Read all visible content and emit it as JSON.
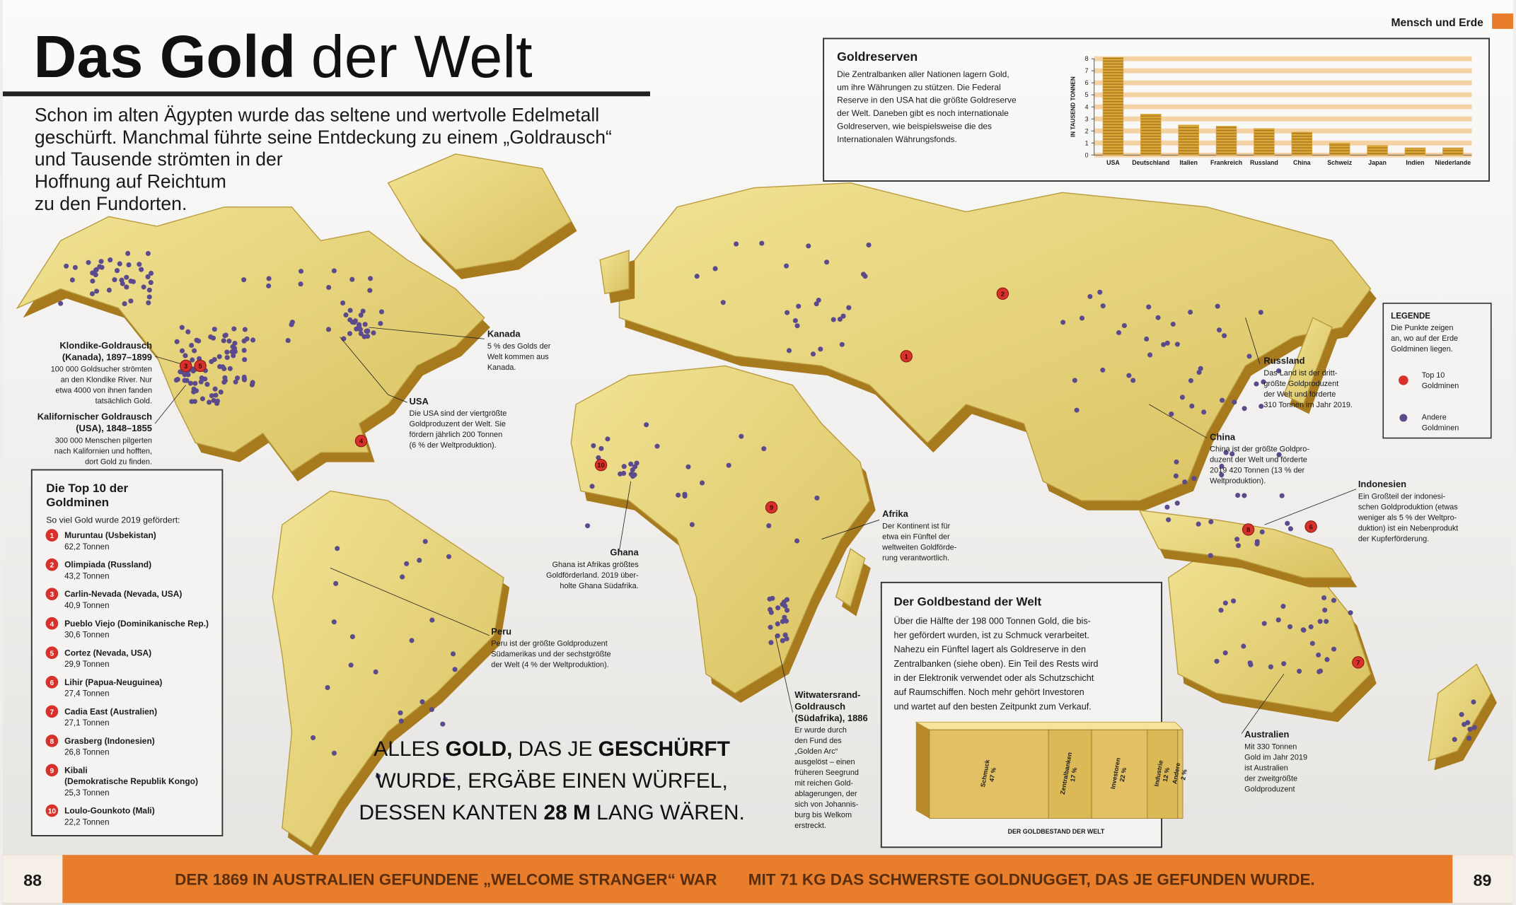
{
  "header": {
    "title_bold": "Das Gold",
    "title_regular": "der Welt",
    "section": "Mensch und Erde",
    "intro": [
      "Schon im alten Ägypten wurde das seltene und wertvolle Edelmetall",
      "geschürft. Manchmal führte seine Entdeckung zu einem „Goldrausch“",
      "und Tausende strömten in der",
      "Hoffnung auf Reichtum",
      "zu den Fundorten."
    ]
  },
  "reserves": {
    "text": [
      "Die Zentralbanken aller Nationen lagern Gold,",
      "um ihre Währungen zu stützen. Die Federal",
      "Reserve in den USA hat die größte Goldreserve",
      "der Welt. Daneben gibt es noch internationale",
      "Goldreserven, wie beispielsweise die des",
      "Internationalen Währungsfonds."
    ]
  },
  "chart_data": [
    {
      "type": "bar",
      "title": "Goldreserven",
      "y_label": "IN TAUSEND TONNEN",
      "categories": [
        "USA",
        "Deutschland",
        "Italien",
        "Frankreich",
        "Russland",
        "China",
        "Schweiz",
        "Japan",
        "Indien",
        "Niederlande"
      ],
      "values": [
        8.1,
        3.4,
        2.5,
        2.4,
        2.2,
        1.9,
        1.0,
        0.8,
        0.6,
        0.6
      ],
      "ylim": [
        0,
        8
      ],
      "yticks": [
        0,
        1,
        2,
        3,
        4,
        5,
        6,
        7,
        8
      ],
      "color": "#d9a63a",
      "grid": true
    },
    {
      "type": "stacked_bar",
      "title": "DER GOLDBESTAND DER WELT",
      "series": [
        {
          "name": "Schmuck",
          "values": [
            47
          ],
          "value_labels": [
            "47 %"
          ],
          "color": "#e2c063"
        },
        {
          "name": "Zentralbanken",
          "values": [
            17
          ],
          "value_labels": [
            "17 %"
          ],
          "color": "#dcb957"
        },
        {
          "name": "Investoren",
          "values": [
            22
          ],
          "value_labels": [
            "22 %"
          ],
          "color": "#e2c063"
        },
        {
          "name": "Industrie",
          "values": [
            12
          ],
          "value_labels": [
            "12 %"
          ],
          "color": "#dcb957"
        },
        {
          "name": "Andere",
          "values": [
            2
          ],
          "value_labels": [
            "2 %"
          ],
          "color": "#e2c063"
        }
      ]
    }
  ],
  "stock": {
    "title": "Der Goldbestand der Welt",
    "text": [
      "Über die Hälfte der 198 000 Tonnen Gold, die bis-",
      "her gefördert wurden, ist zu Schmuck verarbeitet.",
      "Nahezu ein Fünftel lagert als Goldreserve in den",
      "Zentralbanken (siehe oben). Ein Teil des Rests wird",
      "in der Elektronik verwendet oder als Schutzschicht",
      "auf Raumschiffen. Noch mehr gehört Investoren",
      "und wartet auf den besten Zeitpunkt zum Verkauf."
    ]
  },
  "top10": {
    "title": [
      "Die Top 10 der",
      "Goldminen"
    ],
    "subtitle": "So viel Gold wurde 2019 gefördert:",
    "mines": [
      {
        "rank": 1,
        "name": [
          "Muruntau (Usbekistan)"
        ],
        "amount": "62,2 Tonnen"
      },
      {
        "rank": 2,
        "name": [
          "Olimpiada (Russland)"
        ],
        "amount": "43,2 Tonnen"
      },
      {
        "rank": 3,
        "name": [
          "Carlin-Nevada (Nevada, USA)"
        ],
        "amount": "40,9 Tonnen"
      },
      {
        "rank": 4,
        "name": [
          "Pueblo Viejo (Dominikanische Rep.)"
        ],
        "amount": "30,6 Tonnen"
      },
      {
        "rank": 5,
        "name": [
          "Cortez (Nevada, USA)"
        ],
        "amount": "29,9 Tonnen"
      },
      {
        "rank": 6,
        "name": [
          "Lihir (Papua-Neuguinea)"
        ],
        "amount": "27,4 Tonnen"
      },
      {
        "rank": 7,
        "name": [
          "Cadia East (Australien)"
        ],
        "amount": "27,1 Tonnen"
      },
      {
        "rank": 8,
        "name": [
          "Grasberg (Indonesien)"
        ],
        "amount": "26,8 Tonnen"
      },
      {
        "rank": 9,
        "name": [
          "Kibali",
          "(Demokratische Republik Kongo)"
        ],
        "amount": "25,3 Tonnen"
      },
      {
        "rank": 10,
        "name": [
          "Loulo-Gounkoto (Mali)"
        ],
        "amount": "22,2 Tonnen"
      }
    ]
  },
  "annotations": [
    {
      "title": [
        "Klondike-Goldrausch",
        "(Kanada), 1897–1899"
      ],
      "text": [
        "100 000 Goldsucher strömten",
        "an den Klondike River. Nur",
        "etwa 4000 von ihnen fanden",
        "tatsächlich Gold."
      ]
    },
    {
      "title": [
        "Kalifornischer Goldrausch",
        "(USA), 1848–1855"
      ],
      "text": [
        "300 000 Menschen pilgerten",
        "nach Kalifornien und hofften,",
        "dort Gold zu finden."
      ]
    },
    {
      "title": [
        "Kanada"
      ],
      "text": [
        "5 % des Golds der",
        "Welt kommen aus",
        "Kanada."
      ]
    },
    {
      "title": [
        "USA"
      ],
      "text": [
        "Die USA sind der viertgrößte",
        "Goldproduzent der Welt. Sie",
        "fördern jährlich 200 Tonnen",
        "(6 % der Weltproduktion)."
      ]
    },
    {
      "title": [
        "Ghana"
      ],
      "text": [
        "Ghana ist Afrikas größtes",
        "Goldförderland. 2019 über-",
        "holte Ghana Südafrika."
      ]
    },
    {
      "title": [
        "Afrika"
      ],
      "text": [
        "Der Kontinent ist für",
        "etwa ein Fünftel der",
        "weltweiten Goldförde-",
        "rung verantwortlich."
      ]
    },
    {
      "title": [
        "Peru"
      ],
      "text": [
        "Peru ist der größte Goldproduzent",
        "Südamerikas und der sechstgrößte",
        "der Welt (4 % der Weltproduktion)."
      ]
    },
    {
      "title": [
        "Witwatersrand-",
        "Goldrausch",
        "(Südafrika), 1886"
      ],
      "text": [
        "Er wurde durch",
        "den Fund des",
        "„Golden Arc“",
        "ausgelöst – einen",
        "früheren Seegrund",
        "mit reichen Gold-",
        "ablagerungen, der",
        "sich von Johannis-",
        "burg bis Welkom",
        "erstreckt."
      ]
    },
    {
      "title": [
        "Russland"
      ],
      "text": [
        "Das Land ist der dritt-",
        "größte Goldproduzent",
        "der Welt und förderte",
        "310 Tonnen im Jahr 2019."
      ]
    },
    {
      "title": [
        "China"
      ],
      "text": [
        "China ist der größte Goldpro-",
        "duzent der Welt und förderte",
        "2019 420 Tonnen (13 % der",
        "Weltproduktion)."
      ]
    },
    {
      "title": [
        "Indonesien"
      ],
      "text": [
        "Ein Großteil der indonesi-",
        "schen Goldproduktion (etwas",
        "weniger als 5 % der Weltpro-",
        "duktion) ist ein Nebenprodukt",
        "der Kupferförderung."
      ]
    },
    {
      "title": [
        "Australien"
      ],
      "text": [
        "Mit 330 Tonnen",
        "Gold im Jahr 2019",
        "ist Australien",
        "der zweitgrößte",
        "Goldproduzent"
      ]
    }
  ],
  "legend": {
    "title": "LEGENDE",
    "text": [
      "Die Punkte zeigen",
      "an, wo auf der Erde",
      "Goldminen liegen."
    ],
    "items": [
      [
        "Top 10",
        "Goldminen"
      ],
      [
        "Andere",
        "Goldminen"
      ]
    ]
  },
  "quote": [
    [
      {
        "text": "ALLES",
        "bold": false
      },
      {
        "text": "GOLD,",
        "bold": true
      },
      {
        "text": "DAS JE",
        "bold": false
      },
      {
        "text": "GESCHÜRFT",
        "bold": true
      }
    ],
    [
      {
        "text": "WURDE, ERGÄBE EINEN WÜRFEL,",
        "bold": false
      }
    ],
    [
      {
        "text": "DESSEN KANTEN",
        "bold": false
      },
      {
        "text": "28 M",
        "bold": true
      },
      {
        "text": "LANG WÄREN.",
        "bold": false
      }
    ]
  ],
  "footer": {
    "page_left": 88,
    "page_right": 89,
    "text_left": "DER 1869 IN AUSTRALIEN GEFUNDENE „WELCOME STRANGER“ WAR",
    "text_right": "MIT 71 KG DAS SCHWERSTE GOLDNUGGET, DAS JE GEFUNDEN WURDE."
  }
}
